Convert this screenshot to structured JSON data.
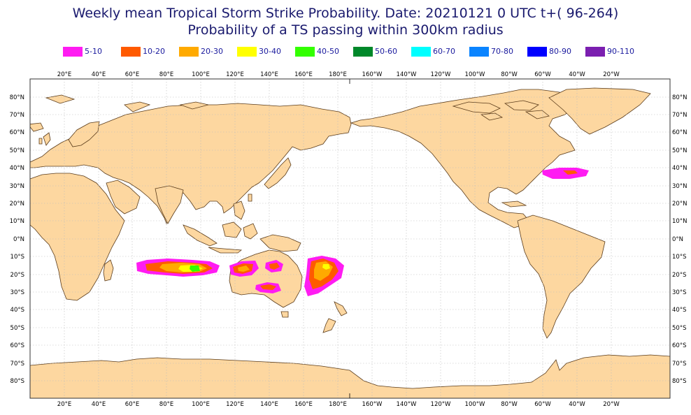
{
  "title_line1": "Weekly mean Tropical Storm Strike Probability. Date: 20210121  0 UTC    t+( 96-264)",
  "title_line2": "Probability of a TS passing within  300km radius",
  "legend": [
    {
      "label": "5-10",
      "color": "#ff1cf2"
    },
    {
      "label": "10-20",
      "color": "#ff5a00"
    },
    {
      "label": "20-30",
      "color": "#ffaa00"
    },
    {
      "label": "30-40",
      "color": "#ffff00"
    },
    {
      "label": "40-50",
      "color": "#33ff00"
    },
    {
      "label": "50-60",
      "color": "#00882a"
    },
    {
      "label": "60-70",
      "color": "#00ffff"
    },
    {
      "label": "70-80",
      "color": "#0a84ff"
    },
    {
      "label": "80-90",
      "color": "#0000ff"
    },
    {
      "label": "90-110",
      "color": "#7b1fb0"
    }
  ],
  "lon_labels": [
    "20°E",
    "40°E",
    "60°E",
    "80°E",
    "100°E",
    "120°E",
    "140°E",
    "160°E",
    "180°E",
    "160°W",
    "140°W",
    "120°W",
    "100°W",
    "80°W",
    "60°W",
    "40°W",
    "20°W"
  ],
  "lat_labels": [
    "80°N",
    "70°N",
    "60°N",
    "50°N",
    "40°N",
    "30°N",
    "20°N",
    "10°N",
    "0°N",
    "10°S",
    "20°S",
    "30°S",
    "40°S",
    "50°S",
    "60°S",
    "70°S",
    "80°S"
  ],
  "colors": {
    "land": "#fdd7a0",
    "coast": "#5a3b1a",
    "ocean": "#ffffff",
    "grid": "#bbbbbb"
  }
}
